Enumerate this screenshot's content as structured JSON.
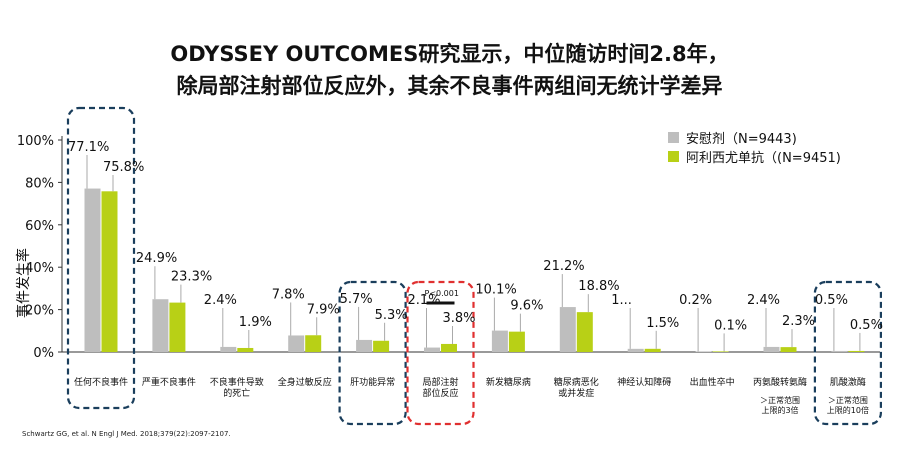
{
  "title_line1": "ODYSSEY OUTCOMES研究显示，中位随访时间2.8年，",
  "title_line2": "除局部注射部位反应外，其余不良事件两组间无统计学差异",
  "reference": "Schwartz GG, et al. N Engl J Med. 2018;379(22):2097-2107.",
  "colors": {
    "placebo": "#bebebe",
    "alirocumab": "#b8d016",
    "dark_box": "#1a3e5c",
    "red_box": "#e03030"
  },
  "chart_data": {
    "type": "bar",
    "title": "",
    "ylabel": "事件发生率",
    "ylim": [
      0,
      100
    ],
    "yticks": [
      "0%",
      "20%",
      "40%",
      "60%",
      "80%",
      "100%"
    ],
    "legend_position": "top-right",
    "series": [
      {
        "name": "安慰剂（N=9443)",
        "values": [
          77.1,
          24.9,
          2.4,
          7.8,
          5.7,
          2.1,
          10.1,
          21.2,
          1.5,
          0.2,
          2.4,
          0.5
        ]
      },
      {
        "name": "阿利西尤单抗（(N=9451)",
        "values": [
          75.8,
          23.3,
          1.9,
          7.9,
          5.3,
          3.8,
          9.6,
          18.8,
          1.5,
          0.1,
          2.3,
          0.5
        ]
      }
    ],
    "value_labels": [
      [
        "77.1%",
        "75.8%"
      ],
      [
        "24.9%",
        "23.3%"
      ],
      [
        "2.4%",
        "1.9%"
      ],
      [
        "7.8%",
        "7.9%"
      ],
      [
        "5.7%",
        "5.3%"
      ],
      [
        "2.1%",
        "3.8%"
      ],
      [
        "10.1%",
        "9.6%"
      ],
      [
        "21.2%",
        "18.8%"
      ],
      [
        "1...",
        "1.5%"
      ],
      [
        "0.2%",
        "0.1%"
      ],
      [
        "2.4%",
        "2.3%"
      ],
      [
        "0.5%",
        "0.5%"
      ]
    ],
    "categories": [
      [
        "任何不良事件"
      ],
      [
        "严重不良事件"
      ],
      [
        "不良事件导致",
        "的死亡"
      ],
      [
        "全身过敏反应"
      ],
      [
        "肝功能异常"
      ],
      [
        "局部注射",
        "部位反应"
      ],
      [
        "新发糖尿病"
      ],
      [
        "糖尿病恶化",
        "或并发症"
      ],
      [
        "神经认知障碍"
      ],
      [
        "出血性卒中"
      ],
      [
        "丙氨酸转氨酶"
      ],
      [
        "肌酸激酶"
      ]
    ],
    "category_notes": [
      {
        "index": 10,
        "lines": [
          "＞正常范围",
          "上限的3倍"
        ]
      },
      {
        "index": 11,
        "lines": [
          "＞正常范围",
          "上限的10倍"
        ]
      }
    ],
    "significance": {
      "index": 5,
      "label": "P<0.001"
    },
    "highlight_boxes": [
      {
        "index": 0,
        "style": "dark"
      },
      {
        "index": 4,
        "style": "dark"
      },
      {
        "index": 5,
        "style": "red"
      },
      {
        "index": 11,
        "style": "dark"
      }
    ]
  }
}
